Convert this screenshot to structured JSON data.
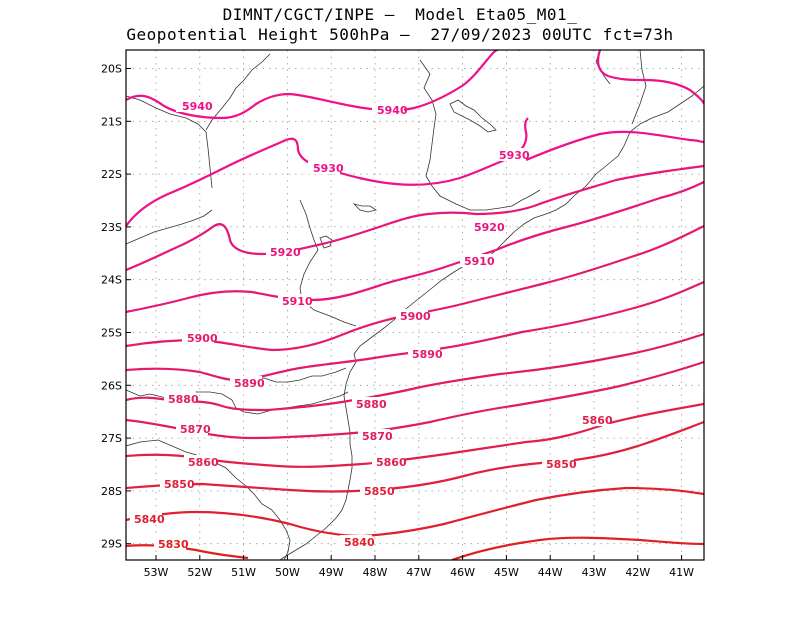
{
  "header": {
    "line1": "DIMNT/CGCT/INPE –  Model Eta05_M01_",
    "line2": "Geopotential Height 500hPa –  27/09/2023 00UTC fct=73h"
  },
  "axes": {
    "lat_labels": [
      "20S",
      "21S",
      "22S",
      "23S",
      "24S",
      "25S",
      "26S",
      "27S",
      "28S",
      "29S"
    ],
    "lon_labels": [
      "53W",
      "52W",
      "51W",
      "50W",
      "49W",
      "48W",
      "47W",
      "46W",
      "45W",
      "44W",
      "43W",
      "42W",
      "41W"
    ]
  },
  "contours": [
    {
      "value": "5940",
      "color": "#ee1188",
      "labels": [
        "5940",
        "5940"
      ]
    },
    {
      "value": "5930",
      "color": "#ee1188",
      "labels": [
        "5930",
        "5930"
      ]
    },
    {
      "value": "5920",
      "color": "#e8157a",
      "labels": [
        "5920",
        "5920"
      ]
    },
    {
      "value": "5910",
      "color": "#e8157a",
      "labels": [
        "5910",
        "5910"
      ]
    },
    {
      "value": "5900",
      "color": "#e51a6c",
      "labels": [
        "5900",
        "5900"
      ]
    },
    {
      "value": "5890",
      "color": "#e51a6c",
      "labels": [
        "5890",
        "5890"
      ]
    },
    {
      "value": "5880",
      "color": "#e11d5a",
      "labels": [
        "5880",
        "5880"
      ]
    },
    {
      "value": "5870",
      "color": "#e11d5a",
      "labels": [
        "5870",
        "5870"
      ]
    },
    {
      "value": "5860",
      "color": "#e0204a",
      "labels": [
        "5860",
        "5860",
        "5860"
      ]
    },
    {
      "value": "5850",
      "color": "#e0203c",
      "labels": [
        "5850",
        "5850",
        "5850"
      ]
    },
    {
      "value": "5840",
      "color": "#e02030",
      "labels": [
        "5840",
        "5840"
      ]
    },
    {
      "value": "5830",
      "color": "#e02020",
      "labels": [
        "5830"
      ]
    }
  ],
  "colors": {
    "frame": "#000000",
    "grid": "#999999",
    "coast": "#333333"
  }
}
